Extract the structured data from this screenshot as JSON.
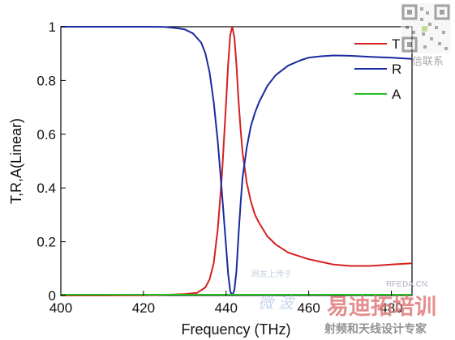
{
  "chart_data": {
    "type": "line",
    "title": "",
    "xlabel": "Frequency (THz)",
    "ylabel": "T,R,A(Linear)",
    "xlim": [
      400,
      485
    ],
    "ylim": [
      0,
      1
    ],
    "xticks": [
      400,
      420,
      440,
      460,
      480
    ],
    "yticks": [
      0,
      0.2,
      0.4,
      0.6,
      0.8,
      1
    ],
    "ytick_labels": [
      "0",
      "0.2",
      "0.4",
      "0.6",
      "0.8",
      "1"
    ],
    "grid": false,
    "legend_position": "top-right",
    "series": [
      {
        "name": "T",
        "color": "#d42020",
        "x": [
          400,
          410,
          420,
          425,
          430,
          433,
          435,
          436,
          437,
          438,
          439,
          440,
          440.5,
          441,
          441.5,
          442,
          442.5,
          443,
          443.5,
          444,
          445,
          446,
          447,
          448,
          450,
          452,
          455,
          458,
          460,
          463,
          466,
          470,
          475,
          480,
          485
        ],
        "y": [
          0.0,
          0.0,
          0.001,
          0.002,
          0.005,
          0.01,
          0.03,
          0.06,
          0.12,
          0.25,
          0.45,
          0.72,
          0.86,
          0.97,
          1.0,
          0.96,
          0.86,
          0.73,
          0.62,
          0.53,
          0.42,
          0.35,
          0.3,
          0.27,
          0.22,
          0.19,
          0.16,
          0.145,
          0.135,
          0.125,
          0.115,
          0.11,
          0.11,
          0.115,
          0.12
        ]
      },
      {
        "name": "R",
        "color": "#1a2aa0",
        "x": [
          400,
          410,
          420,
          425,
          428,
          430,
          432,
          434,
          435,
          436,
          437,
          438,
          439,
          440,
          440.5,
          441,
          441.5,
          442,
          442.5,
          443,
          443.5,
          444,
          445,
          446,
          447,
          448,
          450,
          452,
          455,
          458,
          460,
          463,
          466,
          470,
          475,
          480,
          485
        ],
        "y": [
          1.0,
          1.0,
          1.0,
          0.999,
          0.995,
          0.99,
          0.975,
          0.94,
          0.9,
          0.83,
          0.72,
          0.57,
          0.38,
          0.18,
          0.08,
          0.015,
          0.0,
          0.02,
          0.09,
          0.22,
          0.34,
          0.44,
          0.55,
          0.63,
          0.68,
          0.72,
          0.78,
          0.82,
          0.855,
          0.875,
          0.885,
          0.89,
          0.893,
          0.892,
          0.888,
          0.885,
          0.88
        ]
      },
      {
        "name": "A",
        "color": "#22c022",
        "x": [
          400,
          420,
          440,
          460,
          485
        ],
        "y": [
          0.003,
          0.003,
          0.003,
          0.003,
          0.003
        ]
      }
    ]
  },
  "watermarks": {
    "qr_caption": "信联系",
    "site_caption": "RFEDA.CN",
    "brand_cn": "易迪拓培训",
    "sub_cn": "射频和天线设计专家",
    "left_cn": "微 波",
    "faint_cn": "网友上传于"
  }
}
